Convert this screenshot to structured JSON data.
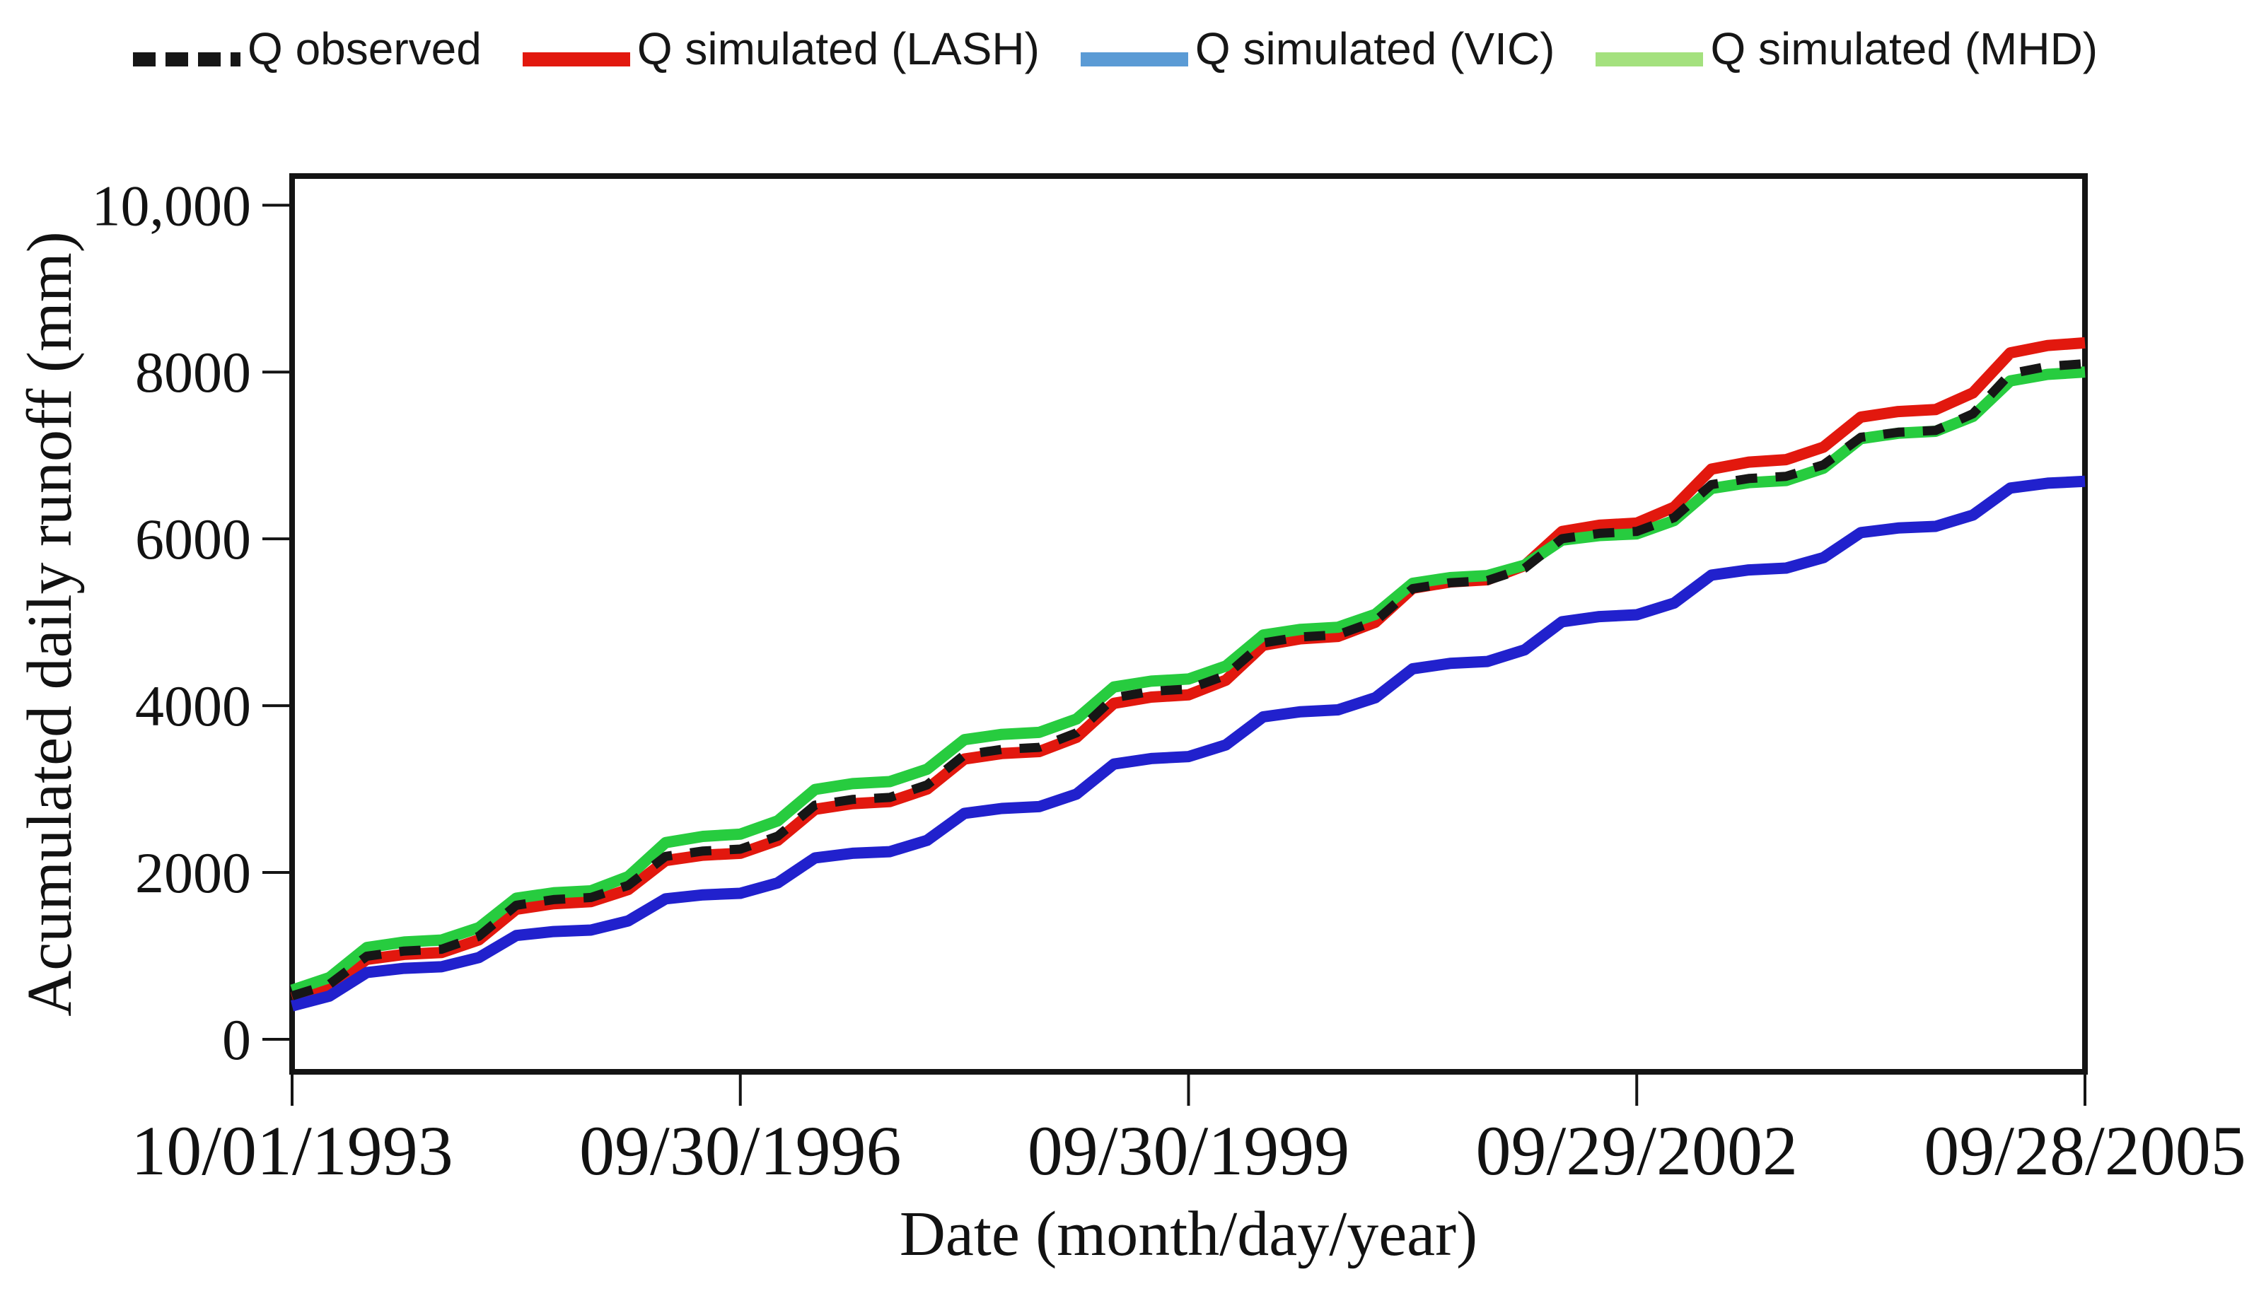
{
  "figure": {
    "background": "#ffffff",
    "axis_color": "#141414",
    "legend": [
      {
        "label": "Q observed",
        "key_color": "#161616",
        "key_style": "dashed"
      },
      {
        "label": "Q simulated (LASH)",
        "key_color": "#e2180e",
        "key_style": "solid"
      },
      {
        "label": "Q simulated (VIC)",
        "key_color": "#5b9bd5",
        "key_style": "solid"
      },
      {
        "label": "Q simulated (MHD)",
        "key_color": "#a4e17e",
        "key_style": "solid"
      }
    ]
  },
  "chart_data": {
    "type": "line",
    "title": "",
    "xlabel": "Date (month/day/year)",
    "ylabel": "Acumulated daily runoff (mm)",
    "grid": false,
    "legend_position": "top",
    "x_unit": "years since 10/01/1993",
    "xlim_years": [
      0,
      12
    ],
    "ylim": [
      -390,
      10350
    ],
    "x_tick_positions_years": [
      0,
      3,
      6,
      9,
      12
    ],
    "x_tick_labels": [
      "10/01/1993",
      "09/30/1996",
      "09/30/1999",
      "09/29/2002",
      "09/28/2005"
    ],
    "y_ticks": [
      0,
      2000,
      4000,
      6000,
      8000,
      10000
    ],
    "y_tick_labels": [
      "0",
      "2000",
      "4000",
      "6000",
      "8000",
      "10,000"
    ],
    "x": [
      0,
      0.25,
      0.5,
      0.75,
      1,
      1.25,
      1.5,
      1.75,
      2,
      2.25,
      2.5,
      2.75,
      3,
      3.25,
      3.5,
      3.75,
      4,
      4.25,
      4.5,
      4.75,
      5,
      5.25,
      5.5,
      5.75,
      6,
      6.25,
      6.5,
      6.75,
      7,
      7.25,
      7.5,
      7.75,
      8,
      8.25,
      8.5,
      8.75,
      9,
      9.25,
      9.5,
      9.75,
      10,
      10.25,
      10.5,
      10.75,
      11,
      11.25,
      11.5,
      11.75,
      12
    ],
    "series": [
      {
        "name": "Q observed",
        "color": "#161616",
        "dash": "30 26",
        "width": 13,
        "values": [
          520,
          660,
          996,
          1058,
          1080,
          1235,
          1607,
          1675,
          1700,
          1845,
          2193,
          2257,
          2280,
          2435,
          2807,
          2875,
          2900,
          3050,
          3410,
          3476,
          3500,
          3675,
          4095,
          4172,
          4200,
          4363,
          4753,
          4824,
          4850,
          5013,
          5403,
          5474,
          5500,
          5648,
          6002,
          6066,
          6090,
          6255,
          6651,
          6724,
          6750,
          6888,
          7218,
          7278,
          7300,
          7500,
          7980,
          8068,
          8100
        ]
      },
      {
        "name": "Q simulated (LASH)",
        "color": "#e2180e",
        "dash": null,
        "width": 16,
        "values": [
          500,
          635,
          959,
          1018,
          1040,
          1193,
          1559,
          1626,
          1650,
          1795,
          2143,
          2207,
          2230,
          2385,
          2757,
          2825,
          2850,
          3000,
          3360,
          3426,
          3450,
          3620,
          4028,
          4103,
          4130,
          4305,
          4725,
          4802,
          4830,
          5000,
          5408,
          5483,
          5510,
          5680,
          6088,
          6163,
          6190,
          6380,
          6836,
          6920,
          6950,
          7100,
          7460,
          7526,
          7550,
          7750,
          8230,
          8318,
          8350
        ]
      },
      {
        "name": "Q simulated (VIC)",
        "color": "#2121cd",
        "dash": null,
        "width": 16,
        "values": [
          400,
          518,
          800,
          851,
          870,
          980,
          1244,
          1292,
          1310,
          1420,
          1684,
          1732,
          1750,
          1875,
          2175,
          2230,
          2250,
          2385,
          2709,
          2768,
          2790,
          2940,
          3300,
          3366,
          3390,
          3530,
          3866,
          3927,
          3950,
          4095,
          4443,
          4507,
          4530,
          4670,
          5006,
          5068,
          5090,
          5230,
          5566,
          5628,
          5650,
          5775,
          6075,
          6130,
          6150,
          6285,
          6609,
          6668,
          6690
        ]
      },
      {
        "name": "Q simulated (MHD)",
        "color": "#27cc3f",
        "dash": null,
        "width": 16,
        "values": [
          590,
          740,
          1100,
          1166,
          1190,
          1338,
          1692,
          1756,
          1780,
          1950,
          2358,
          2433,
          2460,
          2618,
          2996,
          3065,
          3090,
          3238,
          3592,
          3656,
          3680,
          3840,
          4224,
          4294,
          4320,
          4475,
          4847,
          4915,
          4940,
          5095,
          5467,
          5535,
          5560,
          5685,
          5985,
          6040,
          6060,
          6220,
          6604,
          6674,
          6700,
          6848,
          7202,
          7266,
          7290,
          7468,
          7894,
          7972,
          8000
        ]
      }
    ]
  }
}
